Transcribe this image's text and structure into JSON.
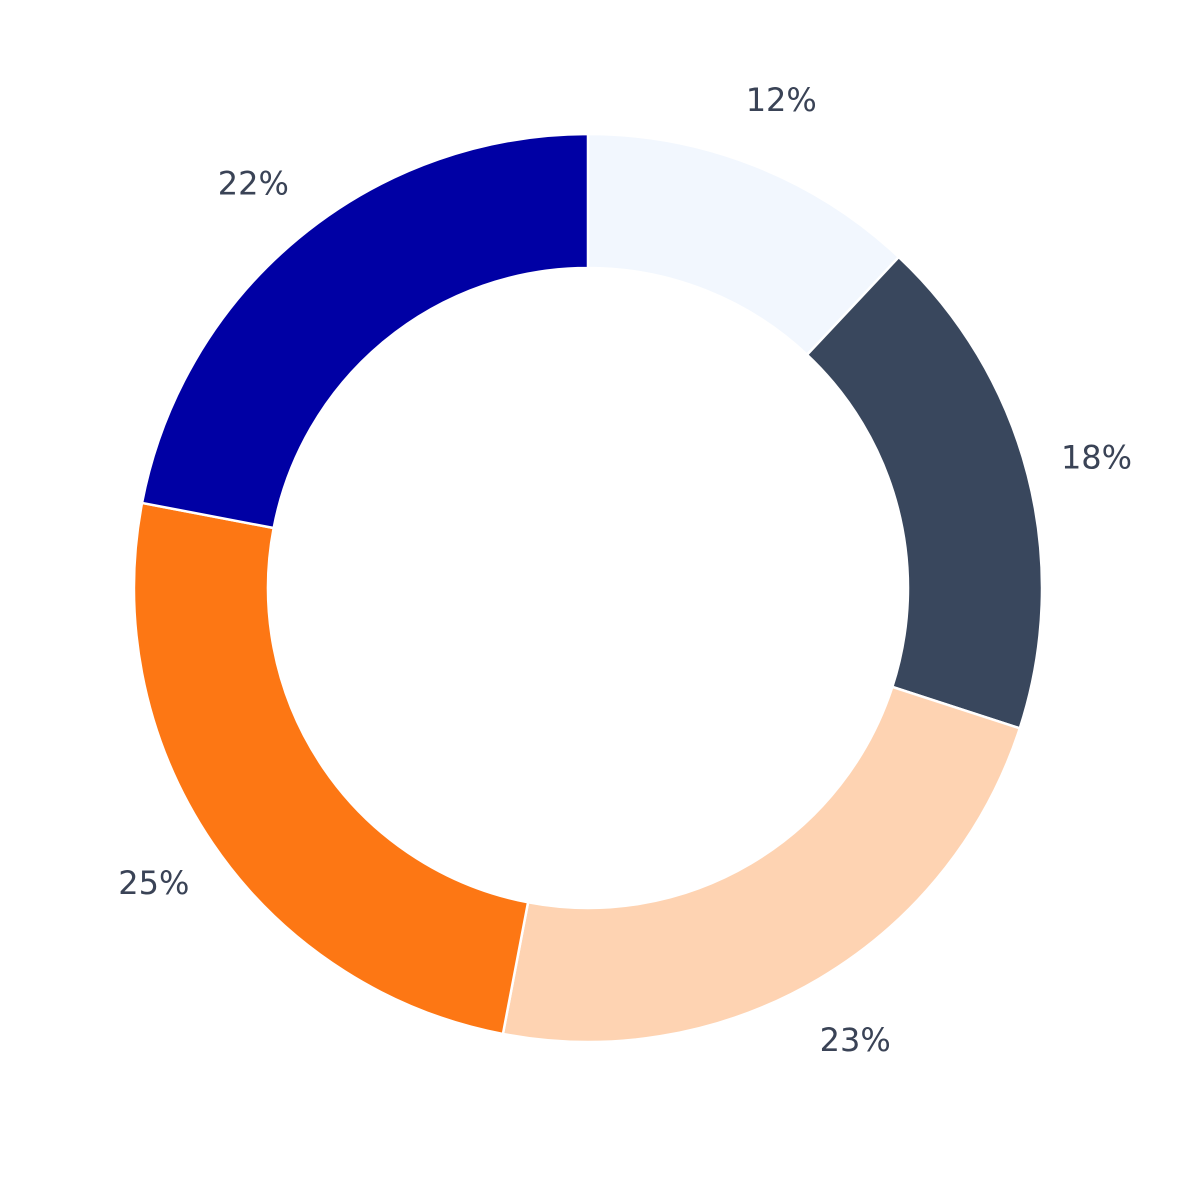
{
  "chart_data": {
    "type": "pie",
    "donut": true,
    "title": "",
    "start": "top",
    "direction": "clockwise",
    "legend": "none",
    "slices": [
      {
        "value": 12,
        "label": "12%",
        "color": "#f2f7fe"
      },
      {
        "value": 18,
        "label": "18%",
        "color": "#39475d"
      },
      {
        "value": 23,
        "label": "23%",
        "color": "#fed3b2"
      },
      {
        "value": 25,
        "label": "25%",
        "color": "#fd7714"
      },
      {
        "value": 22,
        "label": "22%",
        "color": "#0000a4"
      }
    ]
  }
}
